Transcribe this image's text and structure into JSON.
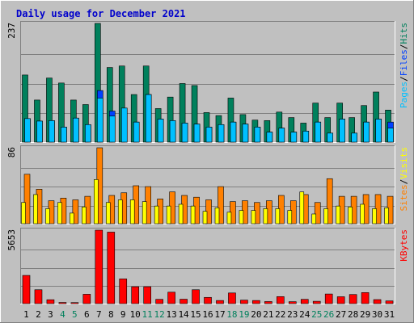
{
  "title": "Daily usage for December 2021",
  "colors": {
    "background": "#c0c0c0",
    "title": "#0000cc",
    "hits": "#00805c",
    "files": "#0040ff",
    "pages": "#00c0ff",
    "visits": "#ffff00",
    "sites": "#ff8000",
    "kbytes": "#ff0000",
    "weekday_label": "#000000",
    "weekend_label": "#00805c"
  },
  "chart_data": [
    {
      "type": "bar",
      "name": "hits-files-pages",
      "ymax_label": "237",
      "ylim": [
        0,
        237
      ],
      "legend": [
        "Pages",
        "Files",
        "Hits"
      ],
      "legend_separator": "/",
      "categories": [
        "1",
        "2",
        "3",
        "4",
        "5",
        "6",
        "7",
        "8",
        "9",
        "10",
        "11",
        "12",
        "13",
        "14",
        "15",
        "16",
        "17",
        "18",
        "19",
        "20",
        "21",
        "22",
        "23",
        "24",
        "25",
        "26",
        "27",
        "28",
        "29",
        "30",
        "31"
      ],
      "series": [
        {
          "name": "Hits",
          "values": [
            134,
            84,
            128,
            118,
            84,
            75,
            237,
            149,
            152,
            95,
            152,
            67,
            90,
            117,
            113,
            59,
            53,
            88,
            55,
            44,
            43,
            60,
            49,
            38,
            78,
            49,
            78,
            49,
            73,
            100,
            64
          ]
        },
        {
          "name": "Files",
          "values": [
            47,
            42,
            43,
            30,
            48,
            35,
            103,
            62,
            68,
            40,
            95,
            46,
            43,
            38,
            36,
            30,
            35,
            40,
            36,
            30,
            20,
            28,
            20,
            22,
            40,
            18,
            46,
            18,
            40,
            46,
            40
          ]
        },
        {
          "name": "Pages",
          "values": [
            47,
            42,
            43,
            30,
            48,
            35,
            88,
            52,
            68,
            40,
            95,
            46,
            43,
            38,
            36,
            30,
            35,
            40,
            36,
            30,
            20,
            28,
            20,
            22,
            40,
            18,
            46,
            18,
            40,
            46,
            28
          ]
        }
      ]
    },
    {
      "type": "bar",
      "name": "visits-sites",
      "ymax_label": "86",
      "ylim": [
        0,
        86
      ],
      "legend": [
        "Sites",
        "Visits"
      ],
      "legend_separator": "/",
      "categories": [
        "1",
        "2",
        "3",
        "4",
        "5",
        "6",
        "7",
        "8",
        "9",
        "10",
        "11",
        "12",
        "13",
        "14",
        "15",
        "16",
        "17",
        "18",
        "19",
        "20",
        "21",
        "22",
        "23",
        "24",
        "25",
        "26",
        "27",
        "28",
        "29",
        "30",
        "31"
      ],
      "series": [
        {
          "name": "Sites",
          "values": [
            56,
            39,
            26,
            29,
            27,
            31,
            86,
            32,
            35,
            43,
            42,
            28,
            36,
            32,
            30,
            27,
            42,
            25,
            26,
            24,
            26,
            32,
            26,
            33,
            24,
            51,
            31,
            31,
            33,
            33,
            31
          ]
        },
        {
          "name": "Visits",
          "values": [
            24,
            33,
            17,
            24,
            12,
            19,
            50,
            24,
            27,
            27,
            25,
            20,
            20,
            22,
            20,
            14,
            18,
            13,
            15,
            15,
            17,
            17,
            15,
            36,
            11,
            17,
            20,
            19,
            22,
            17,
            18
          ]
        }
      ]
    },
    {
      "type": "bar",
      "name": "kbytes",
      "ymax_label": "5653",
      "ylim": [
        0,
        5653
      ],
      "legend": [
        "KBytes"
      ],
      "categories": [
        "1",
        "2",
        "3",
        "4",
        "5",
        "6",
        "7",
        "8",
        "9",
        "10",
        "11",
        "12",
        "13",
        "14",
        "15",
        "16",
        "17",
        "18",
        "19",
        "20",
        "21",
        "22",
        "23",
        "24",
        "25",
        "26",
        "27",
        "28",
        "29",
        "30",
        "31"
      ],
      "weekend_days": [
        "4",
        "5",
        "11",
        "12",
        "18",
        "19",
        "25",
        "26"
      ],
      "series": [
        {
          "name": "KBytes",
          "values": [
            2170,
            1070,
            300,
            90,
            80,
            720,
            5653,
            5500,
            1900,
            1300,
            1300,
            330,
            880,
            340,
            1070,
            480,
            240,
            820,
            270,
            240,
            160,
            540,
            150,
            330,
            180,
            740,
            530,
            700,
            850,
            310,
            210
          ]
        }
      ]
    }
  ]
}
